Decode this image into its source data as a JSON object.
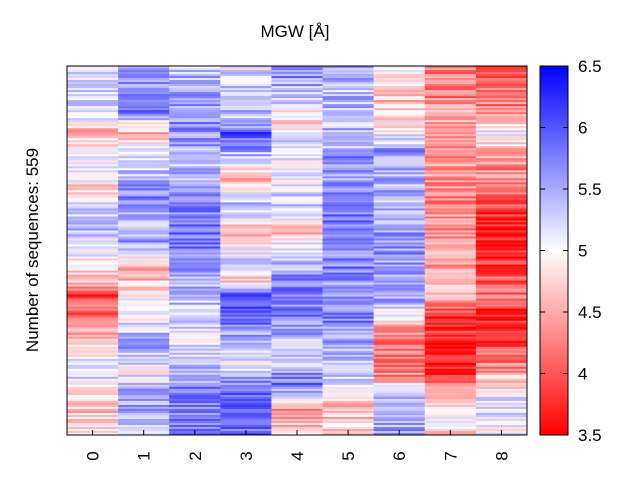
{
  "chart_data": {
    "type": "heatmap",
    "title": "MGW [Å]",
    "ylabel": "Number of sequences: 559",
    "xlabel": "",
    "x_categories": [
      "0",
      "1",
      "2",
      "3",
      "4",
      "5",
      "6",
      "7",
      "8"
    ],
    "n_rows": 559,
    "colorbar": {
      "min": 3.5,
      "max": 6.5,
      "ticks": [
        "3.5",
        "4",
        "4.5",
        "5",
        "5.5",
        "6",
        "6.5"
      ],
      "low_color": "#ff0000",
      "mid_color": "#ffffff",
      "high_color": "#0000ff"
    },
    "column_profiles": [
      [
        [
          0,
          5.0
        ],
        [
          0.08,
          5.3
        ],
        [
          0.14,
          5.1
        ],
        [
          0.18,
          4.5
        ],
        [
          0.27,
          5.2
        ],
        [
          0.33,
          4.8
        ],
        [
          0.42,
          5.5
        ],
        [
          0.5,
          5.0
        ],
        [
          0.58,
          4.7
        ],
        [
          0.62,
          3.9
        ],
        [
          0.7,
          4.3
        ],
        [
          0.77,
          4.9
        ],
        [
          0.85,
          5.2
        ],
        [
          0.92,
          4.6
        ],
        [
          1.0,
          4.8
        ]
      ],
      [
        [
          0,
          5.6
        ],
        [
          0.12,
          5.8
        ],
        [
          0.18,
          4.6
        ],
        [
          0.26,
          5.2
        ],
        [
          0.35,
          5.7
        ],
        [
          0.42,
          5.4
        ],
        [
          0.48,
          5.6
        ],
        [
          0.55,
          4.5
        ],
        [
          0.62,
          4.8
        ],
        [
          0.7,
          5.2
        ],
        [
          0.76,
          5.5
        ],
        [
          0.83,
          5.0
        ],
        [
          0.9,
          5.6
        ],
        [
          1.0,
          5.4
        ]
      ],
      [
        [
          0,
          5.3
        ],
        [
          0.06,
          5.6
        ],
        [
          0.16,
          5.7
        ],
        [
          0.25,
          5.4
        ],
        [
          0.34,
          5.5
        ],
        [
          0.45,
          5.9
        ],
        [
          0.53,
          5.6
        ],
        [
          0.62,
          5.4
        ],
        [
          0.7,
          5.3
        ],
        [
          0.76,
          5.1
        ],
        [
          0.82,
          5.4
        ],
        [
          0.88,
          5.8
        ],
        [
          1.0,
          5.7
        ]
      ],
      [
        [
          0,
          5.1
        ],
        [
          0.06,
          5.3
        ],
        [
          0.15,
          5.4
        ],
        [
          0.18,
          6.0
        ],
        [
          0.25,
          5.3
        ],
        [
          0.3,
          4.4
        ],
        [
          0.38,
          5.4
        ],
        [
          0.45,
          4.6
        ],
        [
          0.55,
          5.4
        ],
        [
          0.58,
          4.5
        ],
        [
          0.63,
          6.2
        ],
        [
          0.72,
          5.6
        ],
        [
          0.78,
          5.0
        ],
        [
          0.86,
          5.7
        ],
        [
          0.9,
          6.1
        ],
        [
          1.0,
          5.8
        ]
      ],
      [
        [
          0,
          5.8
        ],
        [
          0.08,
          5.4
        ],
        [
          0.15,
          4.8
        ],
        [
          0.22,
          5.3
        ],
        [
          0.3,
          5.1
        ],
        [
          0.38,
          5.3
        ],
        [
          0.45,
          4.6
        ],
        [
          0.5,
          5.2
        ],
        [
          0.58,
          5.7
        ],
        [
          0.66,
          5.8
        ],
        [
          0.73,
          5.5
        ],
        [
          0.8,
          5.3
        ],
        [
          0.86,
          5.9
        ],
        [
          0.92,
          4.4
        ],
        [
          1.0,
          4.7
        ]
      ],
      [
        [
          0,
          5.4
        ],
        [
          0.22,
          5.4
        ],
        [
          0.24,
          5.7
        ],
        [
          0.32,
          5.6
        ],
        [
          0.4,
          5.8
        ],
        [
          0.5,
          5.6
        ],
        [
          0.55,
          5.8
        ],
        [
          0.6,
          5.5
        ],
        [
          0.68,
          5.8
        ],
        [
          0.75,
          5.5
        ],
        [
          0.82,
          5.4
        ],
        [
          0.92,
          4.6
        ],
        [
          1.0,
          4.8
        ]
      ],
      [
        [
          0,
          4.9
        ],
        [
          0.1,
          4.6
        ],
        [
          0.18,
          5.0
        ],
        [
          0.23,
          5.6
        ],
        [
          0.32,
          5.5
        ],
        [
          0.4,
          5.4
        ],
        [
          0.48,
          5.7
        ],
        [
          0.56,
          5.5
        ],
        [
          0.63,
          5.6
        ],
        [
          0.7,
          4.6
        ],
        [
          0.76,
          4.2
        ],
        [
          0.84,
          4.3
        ],
        [
          0.9,
          5.6
        ],
        [
          1.0,
          5.5
        ]
      ],
      [
        [
          0,
          4.3
        ],
        [
          0.08,
          4.2
        ],
        [
          0.16,
          4.5
        ],
        [
          0.25,
          4.4
        ],
        [
          0.35,
          4.3
        ],
        [
          0.45,
          4.4
        ],
        [
          0.55,
          4.5
        ],
        [
          0.62,
          4.6
        ],
        [
          0.68,
          3.7
        ],
        [
          0.76,
          3.8
        ],
        [
          0.82,
          3.6
        ],
        [
          0.88,
          4.3
        ],
        [
          0.94,
          5.0
        ],
        [
          1.0,
          4.8
        ]
      ],
      [
        [
          0,
          4.0
        ],
        [
          0.1,
          4.2
        ],
        [
          0.18,
          5.0
        ],
        [
          0.25,
          4.4
        ],
        [
          0.35,
          4.2
        ],
        [
          0.4,
          3.8
        ],
        [
          0.48,
          3.6
        ],
        [
          0.55,
          3.9
        ],
        [
          0.62,
          4.2
        ],
        [
          0.68,
          3.6
        ],
        [
          0.74,
          3.8
        ],
        [
          0.82,
          4.3
        ],
        [
          0.9,
          5.2
        ],
        [
          1.0,
          5.0
        ]
      ]
    ]
  }
}
